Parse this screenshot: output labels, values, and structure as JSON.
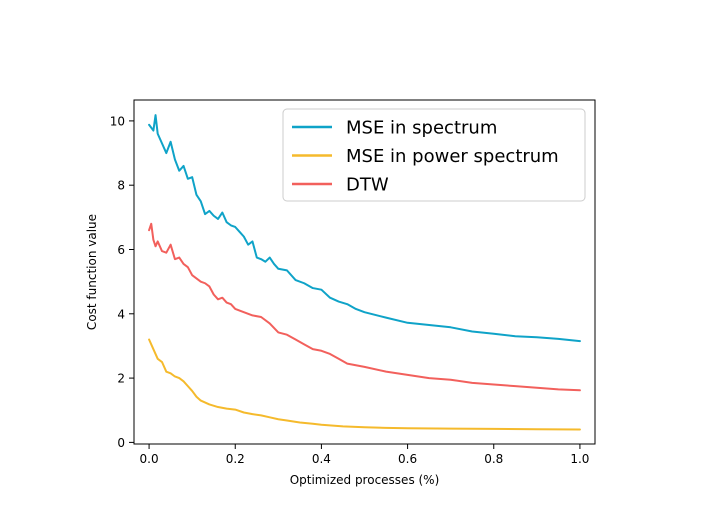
{
  "chart_data": {
    "type": "line",
    "title": "",
    "xlabel": "Optimized processes (%)",
    "ylabel": "Cost function value",
    "xlim": [
      -0.035,
      1.035
    ],
    "ylim": [
      -0.05,
      10.65
    ],
    "xticks": [
      0.0,
      0.2,
      0.4,
      0.6,
      0.8,
      1.0
    ],
    "xtick_labels": [
      "0.0",
      "0.2",
      "0.4",
      "0.6",
      "0.8",
      "1.0"
    ],
    "yticks": [
      0,
      2,
      4,
      6,
      8,
      10
    ],
    "ytick_labels": [
      "0",
      "2",
      "4",
      "6",
      "8",
      "10"
    ],
    "grid": false,
    "legend_position": "top-right",
    "series": [
      {
        "name": "MSE in spectrum",
        "color": "#0fa3c8",
        "x": [
          0.0,
          0.01,
          0.015,
          0.02,
          0.03,
          0.04,
          0.05,
          0.06,
          0.07,
          0.08,
          0.09,
          0.1,
          0.11,
          0.12,
          0.13,
          0.14,
          0.15,
          0.16,
          0.17,
          0.18,
          0.19,
          0.2,
          0.21,
          0.22,
          0.23,
          0.24,
          0.25,
          0.26,
          0.27,
          0.28,
          0.29,
          0.3,
          0.32,
          0.34,
          0.36,
          0.38,
          0.4,
          0.42,
          0.44,
          0.46,
          0.48,
          0.5,
          0.55,
          0.6,
          0.65,
          0.7,
          0.75,
          0.8,
          0.85,
          0.9,
          0.95,
          1.0
        ],
        "y": [
          9.88,
          9.7,
          10.18,
          9.6,
          9.3,
          9.0,
          9.35,
          8.8,
          8.45,
          8.6,
          8.2,
          8.25,
          7.7,
          7.5,
          7.1,
          7.2,
          7.05,
          6.95,
          7.15,
          6.85,
          6.75,
          6.7,
          6.55,
          6.4,
          6.15,
          6.25,
          5.75,
          5.7,
          5.62,
          5.75,
          5.55,
          5.4,
          5.35,
          5.05,
          4.95,
          4.8,
          4.75,
          4.5,
          4.38,
          4.3,
          4.15,
          4.05,
          3.88,
          3.72,
          3.65,
          3.58,
          3.45,
          3.38,
          3.3,
          3.27,
          3.22,
          3.15
        ]
      },
      {
        "name": "MSE in power spectrum",
        "color": "#f5ba2c",
        "x": [
          0.0,
          0.01,
          0.02,
          0.03,
          0.04,
          0.05,
          0.06,
          0.07,
          0.08,
          0.09,
          0.1,
          0.11,
          0.12,
          0.14,
          0.16,
          0.18,
          0.2,
          0.22,
          0.24,
          0.26,
          0.28,
          0.3,
          0.32,
          0.35,
          0.38,
          0.4,
          0.45,
          0.5,
          0.55,
          0.6,
          0.7,
          0.8,
          0.9,
          1.0
        ],
        "y": [
          3.2,
          2.9,
          2.6,
          2.5,
          2.2,
          2.15,
          2.05,
          2.0,
          1.9,
          1.75,
          1.6,
          1.42,
          1.3,
          1.18,
          1.1,
          1.05,
          1.02,
          0.93,
          0.88,
          0.84,
          0.78,
          0.72,
          0.68,
          0.62,
          0.58,
          0.55,
          0.5,
          0.47,
          0.45,
          0.44,
          0.43,
          0.42,
          0.41,
          0.4
        ]
      },
      {
        "name": "DTW",
        "color": "#f2605c",
        "x": [
          0.0,
          0.005,
          0.01,
          0.015,
          0.02,
          0.03,
          0.04,
          0.05,
          0.06,
          0.07,
          0.08,
          0.09,
          0.1,
          0.11,
          0.12,
          0.13,
          0.14,
          0.15,
          0.16,
          0.17,
          0.18,
          0.19,
          0.2,
          0.22,
          0.24,
          0.26,
          0.28,
          0.3,
          0.32,
          0.34,
          0.36,
          0.38,
          0.4,
          0.42,
          0.44,
          0.46,
          0.48,
          0.5,
          0.55,
          0.6,
          0.65,
          0.7,
          0.75,
          0.8,
          0.85,
          0.9,
          0.95,
          1.0
        ],
        "y": [
          6.6,
          6.8,
          6.3,
          6.1,
          6.25,
          5.95,
          5.9,
          6.15,
          5.7,
          5.75,
          5.55,
          5.45,
          5.2,
          5.1,
          5.0,
          4.95,
          4.85,
          4.6,
          4.45,
          4.5,
          4.35,
          4.3,
          4.15,
          4.05,
          3.95,
          3.9,
          3.7,
          3.42,
          3.35,
          3.2,
          3.05,
          2.9,
          2.85,
          2.75,
          2.6,
          2.45,
          2.4,
          2.35,
          2.2,
          2.1,
          2.0,
          1.95,
          1.85,
          1.8,
          1.75,
          1.7,
          1.65,
          1.62
        ]
      }
    ]
  }
}
